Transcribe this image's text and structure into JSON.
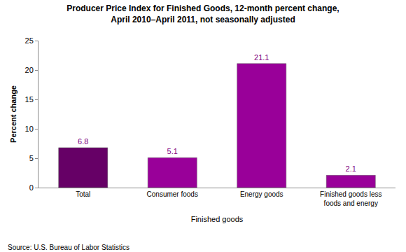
{
  "chart_data": {
    "type": "bar",
    "title": "Producer Price Index for Finished Goods, 12-month percent change,\nApril 2010–April 2011, not seasonally adjusted",
    "x_label": "Finished goods",
    "y_label": "Percent change",
    "source": "Source: U.S. Bureau of Labor Statistics",
    "categories": [
      "Total",
      "Consumer foods",
      "Energy goods",
      "Finished goods less foods and energy"
    ],
    "values": [
      6.8,
      5.1,
      21.1,
      2.1
    ],
    "colors": [
      "#660066",
      "#990099",
      "#990099",
      "#990099"
    ],
    "ylim": [
      0,
      25
    ],
    "yticks": [
      0,
      5,
      10,
      15,
      20,
      25
    ],
    "grid": false,
    "data_labels": true
  }
}
